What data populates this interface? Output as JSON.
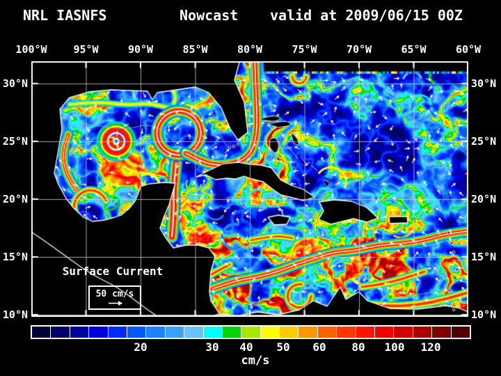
{
  "title": {
    "model": "NRL IASNFS",
    "run_type": "Nowcast",
    "valid": "valid at 2009/06/15 00Z"
  },
  "map": {
    "top_axis_labels": [
      "100°W",
      "95°W",
      "90°W",
      "85°W",
      "80°W",
      "75°W",
      "70°W",
      "65°W",
      "60°W"
    ],
    "left_axis_labels": [
      "30°N",
      "25°N",
      "20°N",
      "15°N",
      "10°N"
    ],
    "right_axis_labels": [
      "30°N",
      "25°N",
      "20°N",
      "15°N",
      "10°N"
    ],
    "legend": {
      "title": "Surface Current",
      "reference_value": "50 cm/s"
    }
  },
  "colorbar": {
    "unit": "cm/s",
    "tick_labels": [
      "20",
      "30",
      "40",
      "50",
      "60",
      "80",
      "100",
      "120"
    ],
    "swatch_colors": [
      "#000038",
      "#000068",
      "#0000A0",
      "#0000D8",
      "#0028FF",
      "#0058FF",
      "#1E82FF",
      "#3CA0FF",
      "#64C3FF",
      "#00FFFF",
      "#00D400",
      "#A4E800",
      "#FFFF00",
      "#FFC800",
      "#FF9600",
      "#FF6400",
      "#FF3700",
      "#FF1400",
      "#F00000",
      "#D00000",
      "#A80000",
      "#800000",
      "#500000"
    ]
  },
  "field_colors": {
    "ocean_background": "#000A1E",
    "land": "#000000",
    "coastline": "#FFFFFF",
    "grid": "#D0D0D0",
    "frame": "#FFFFFF",
    "arrows": "#FFFFFF"
  }
}
